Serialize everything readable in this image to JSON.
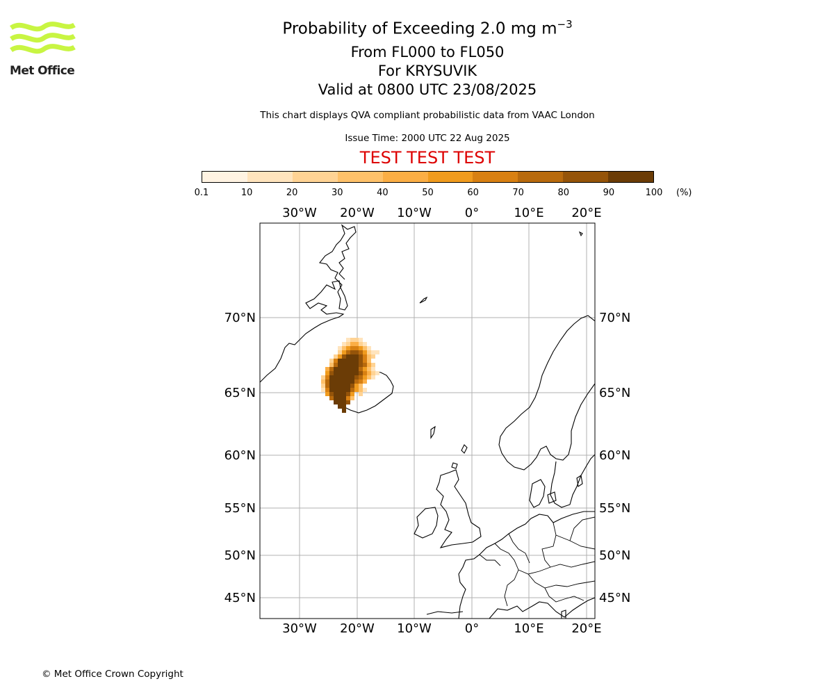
{
  "logo": {
    "text": "Met Office",
    "accent_color": "#c8f542"
  },
  "header": {
    "title_prefix": "Probability of Exceeding 2.0 mg m",
    "title_exponent": "−3",
    "flight_levels": "From FL000 to FL050",
    "location": "For KRYSUVIK",
    "valid": "Valid at 0800 UTC 23/08/2025",
    "description": "This chart displays QVA compliant probabilistic data from VAAC London",
    "issue_time": "Issue Time: 2000 UTC 22 Aug 2025",
    "test_banner": "TEST TEST TEST",
    "test_color": "#dd0000"
  },
  "colorbar": {
    "ticks": [
      "0.1",
      "10",
      "20",
      "30",
      "40",
      "50",
      "60",
      "70",
      "80",
      "90",
      "100"
    ],
    "unit": "(%)",
    "colors": [
      "#fff3e2",
      "#ffe4bd",
      "#ffd394",
      "#fec16a",
      "#fbae45",
      "#f09b1e",
      "#d88012",
      "#b86a0d",
      "#955409",
      "#6b3c06"
    ]
  },
  "map": {
    "lon_labels": [
      "30°W",
      "20°W",
      "10°W",
      "0°",
      "10°E",
      "20°E"
    ],
    "lat_labels": [
      "70°N",
      "65°N",
      "60°N",
      "55°N",
      "50°N",
      "45°N"
    ],
    "gridline_color": "#b0b0b0",
    "plume_peak_percent": 100
  },
  "footer": {
    "copyright": "© Met Office Crown Copyright"
  }
}
